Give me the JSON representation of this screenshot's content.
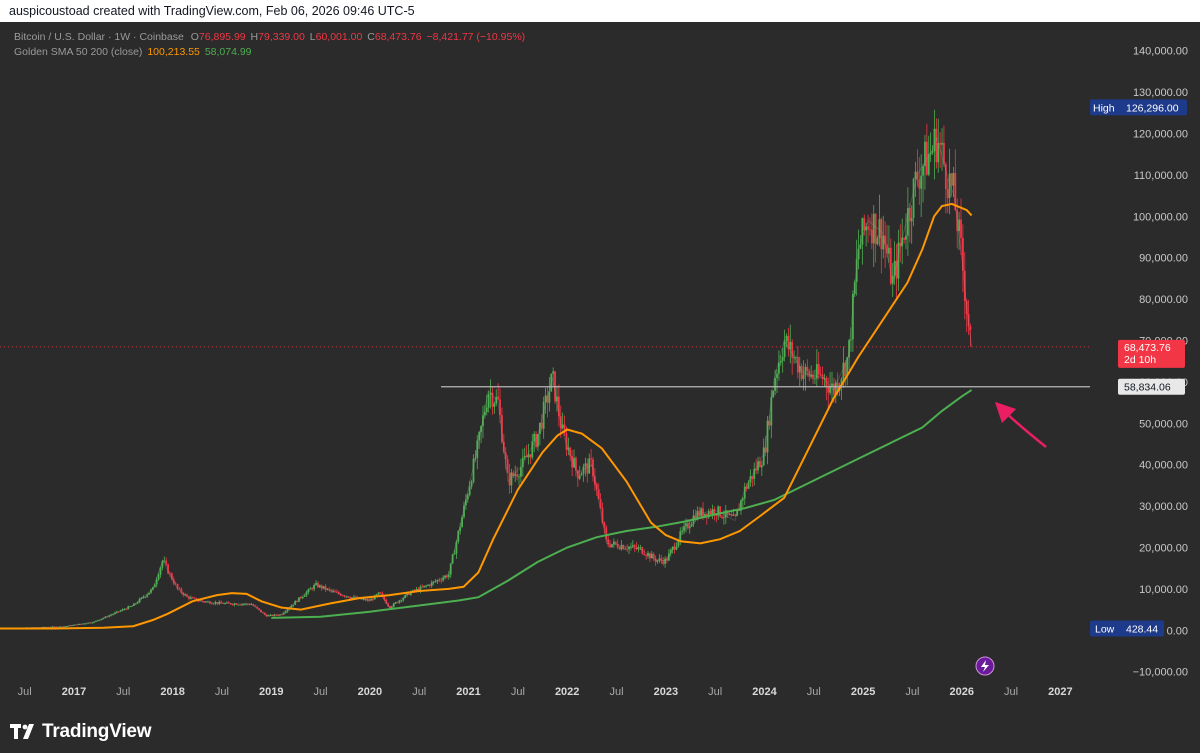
{
  "header": {
    "author_line": "auspicoustoad created with TradingView.com, Feb 06, 2026 09:46 UTC-5"
  },
  "legend": {
    "symbol": "Bitcoin / U.S. Dollar · 1W · Coinbase",
    "o_label": "O",
    "o_value": "76,895.99",
    "h_label": "H",
    "h_value": "79,339.00",
    "l_label": "L",
    "l_value": "60,001.00",
    "c_label": "C",
    "c_value": "68,473.76",
    "change": "−8,421.77 (−10.95%)",
    "indicator": "Golden SMA 50 200 (close)",
    "sma50_value": "100,213.55",
    "sma200_value": "58,074.99"
  },
  "badges": {
    "high_label": "High",
    "high_value": "126,296.00",
    "low_label": "Low",
    "low_value": "428.44",
    "price_value": "68,473.76",
    "countdown": "2d 10h",
    "hline_value": "58,834.06"
  },
  "footer": {
    "brand": "TradingView"
  },
  "colors": {
    "background": "#2b2b2b",
    "up": "#4caf50",
    "down": "#f23645",
    "sma50": "#ff9800",
    "sma200": "#4caf50",
    "badge_navy": "#1e3a8a",
    "price_badge": "#f23645",
    "hline": "#b8b8b8",
    "arrow": "#e91e63"
  },
  "chart_data": {
    "type": "line",
    "title": "",
    "y_ticks": [
      "140,000.00",
      "130,000.00",
      "120,000.00",
      "110,000.00",
      "100,000.00",
      "90,000.00",
      "80,000.00",
      "70,000.00",
      "60,000.00",
      "50,000.00",
      "40,000.00",
      "30,000.00",
      "20,000.00",
      "10,000.00",
      "0.00",
      "−10,000.00"
    ],
    "y_tick_values": [
      140000,
      130000,
      120000,
      110000,
      100000,
      90000,
      80000,
      70000,
      60000,
      50000,
      40000,
      30000,
      20000,
      10000,
      0,
      -10000
    ],
    "ylim": [
      -12000,
      145000
    ],
    "x_ticks": [
      "Jul",
      "2017",
      "Jul",
      "2018",
      "Jul",
      "2019",
      "Jul",
      "2020",
      "Jul",
      "2021",
      "Jul",
      "2022",
      "Jul",
      "2023",
      "Jul",
      "2024",
      "Jul",
      "2025",
      "Jul",
      "2026",
      "Jul",
      "2027"
    ],
    "x_tick_values": [
      2016.5,
      2017,
      2017.5,
      2018,
      2018.5,
      2019,
      2019.5,
      2020,
      2020.5,
      2021,
      2021.5,
      2022,
      2022.5,
      2023,
      2023.5,
      2024,
      2024.5,
      2025,
      2025.5,
      2026,
      2026.5,
      2027
    ],
    "xlim": [
      2016.25,
      2027.3
    ],
    "price_path": {
      "x": [
        2016.25,
        2016.6,
        2016.9,
        2017.2,
        2017.4,
        2017.6,
        2017.8,
        2017.9,
        2017.96,
        2018.05,
        2018.15,
        2018.3,
        2018.5,
        2018.8,
        2018.95,
        2019.1,
        2019.3,
        2019.45,
        2019.6,
        2019.8,
        2020.0,
        2020.1,
        2020.2,
        2020.4,
        2020.6,
        2020.8,
        2020.95,
        2021.1,
        2021.2,
        2021.3,
        2021.4,
        2021.55,
        2021.7,
        2021.85,
        2021.95,
        2022.1,
        2022.25,
        2022.4,
        2022.55,
        2022.75,
        2022.9,
        2023.0,
        2023.15,
        2023.3,
        2023.5,
        2023.7,
        2023.8,
        2024.0,
        2024.1,
        2024.2,
        2024.4,
        2024.6,
        2024.7,
        2024.85,
        2024.95,
        2025.05,
        2025.2,
        2025.3,
        2025.4,
        2025.55,
        2025.7,
        2025.75,
        2025.85,
        2025.92,
        2026.0,
        2026.05,
        2026.1
      ],
      "y": [
        430,
        650,
        900,
        2000,
        4000,
        6000,
        10000,
        17000,
        14000,
        10000,
        8000,
        7000,
        6500,
        6300,
        3500,
        3800,
        8000,
        11000,
        9500,
        8000,
        7200,
        9000,
        5500,
        9000,
        11000,
        13500,
        29000,
        45000,
        58000,
        55000,
        36000,
        40000,
        47000,
        61000,
        48000,
        38000,
        40000,
        21000,
        20500,
        19500,
        17000,
        16800,
        23000,
        28000,
        29000,
        26500,
        34000,
        43000,
        61000,
        70000,
        62000,
        61000,
        58000,
        66000,
        92000,
        99000,
        96000,
        84000,
        95000,
        110000,
        116000,
        119000,
        110000,
        105000,
        90000,
        78000,
        68474
      ]
    },
    "series": [
      {
        "name": "SMA 50",
        "x": [
          2016.25,
          2016.8,
          2017.3,
          2017.6,
          2017.8,
          2017.95,
          2018.2,
          2018.45,
          2018.6,
          2018.75,
          2018.9,
          2019.1,
          2019.3,
          2019.6,
          2019.9,
          2020.2,
          2020.5,
          2020.8,
          2020.95,
          2021.1,
          2021.25,
          2021.5,
          2021.75,
          2021.9,
          2022.0,
          2022.15,
          2022.35,
          2022.6,
          2022.85,
          2023.0,
          2023.15,
          2023.35,
          2023.55,
          2023.75,
          2023.95,
          2024.2,
          2024.45,
          2024.7,
          2024.95,
          2025.2,
          2025.45,
          2025.6,
          2025.72,
          2025.8,
          2025.9,
          2026.05,
          2026.1
        ],
        "y": [
          430,
          450,
          600,
          1000,
          2500,
          4000,
          7000,
          8500,
          9000,
          8800,
          7000,
          5500,
          5000,
          6500,
          7800,
          8500,
          9500,
          10000,
          10500,
          14000,
          22000,
          34000,
          43000,
          47000,
          48500,
          47500,
          44000,
          36000,
          26000,
          23000,
          21500,
          21000,
          22000,
          24000,
          27500,
          32000,
          44000,
          56000,
          66000,
          75000,
          84000,
          92000,
          100000,
          102500,
          103000,
          101500,
          100214
        ]
      },
      {
        "name": "SMA 200",
        "x": [
          2019.0,
          2019.5,
          2020.0,
          2020.5,
          2020.9,
          2021.1,
          2021.4,
          2021.7,
          2022.0,
          2022.3,
          2022.6,
          2022.9,
          2023.2,
          2023.5,
          2023.8,
          2024.1,
          2024.4,
          2024.7,
          2025.0,
          2025.3,
          2025.6,
          2025.8,
          2026.0,
          2026.1
        ],
        "y": [
          3000,
          3300,
          4500,
          6000,
          7200,
          8000,
          12000,
          16500,
          20000,
          22500,
          24000,
          25000,
          26300,
          28000,
          29500,
          31500,
          35000,
          38500,
          42000,
          45500,
          49000,
          53000,
          56500,
          58075
        ]
      }
    ],
    "high": 126296.0,
    "low": 428.44,
    "last_close": 68473.76,
    "horizontal_line": 58834.06,
    "grid": false,
    "legend_position": "top-left"
  }
}
